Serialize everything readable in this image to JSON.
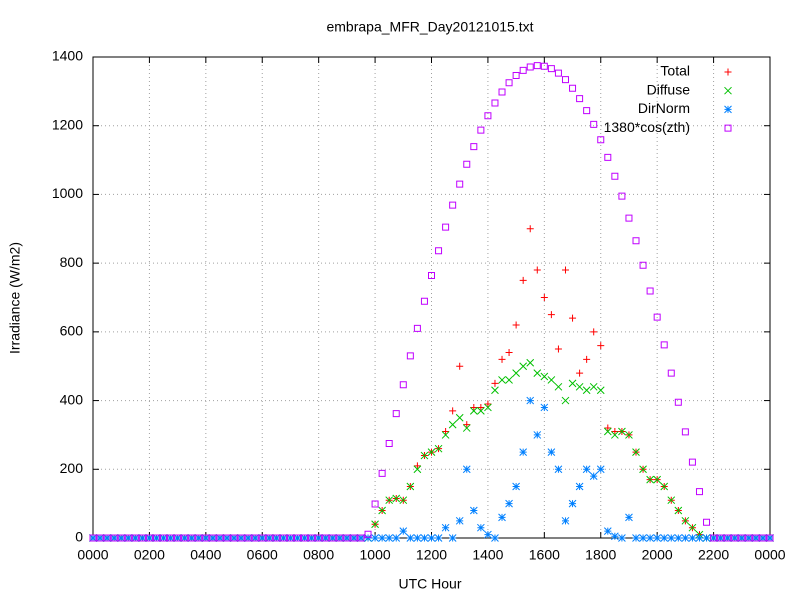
{
  "chart_data": {
    "type": "scatter",
    "title": "embrapa_MFR_Day20121015.txt",
    "xlabel": "UTC Hour",
    "ylabel": "Irradiance (W/m2)",
    "x": [
      0,
      0.25,
      0.5,
      0.75,
      1,
      1.25,
      1.5,
      1.75,
      2,
      2.25,
      2.5,
      2.75,
      3,
      3.25,
      3.5,
      3.75,
      4,
      4.25,
      4.5,
      4.75,
      5,
      5.25,
      5.5,
      5.75,
      6,
      6.25,
      6.5,
      6.75,
      7,
      7.25,
      7.5,
      7.75,
      8,
      8.25,
      8.5,
      8.75,
      9,
      9.25,
      9.5,
      9.75,
      10,
      10.25,
      10.5,
      10.75,
      11,
      11.25,
      11.5,
      11.75,
      12,
      12.25,
      12.5,
      12.75,
      13,
      13.25,
      13.5,
      13.75,
      14,
      14.25,
      14.5,
      14.75,
      15,
      15.25,
      15.5,
      15.75,
      16,
      16.25,
      16.5,
      16.75,
      17,
      17.25,
      17.5,
      17.75,
      18,
      18.25,
      18.5,
      18.75,
      19,
      19.25,
      19.5,
      19.75,
      20,
      20.25,
      20.5,
      20.75,
      21,
      21.25,
      21.5,
      21.75,
      22,
      22.25,
      22.5,
      22.75,
      23,
      23.25,
      23.5,
      23.75,
      24
    ],
    "series": [
      {
        "name": "Total",
        "color": "#ff0000",
        "marker": "plus",
        "values": [
          0,
          0,
          0,
          0,
          0,
          0,
          0,
          0,
          0,
          0,
          0,
          0,
          0,
          0,
          0,
          0,
          0,
          0,
          0,
          0,
          0,
          0,
          0,
          0,
          0,
          0,
          0,
          0,
          0,
          0,
          0,
          0,
          0,
          0,
          0,
          0,
          0,
          0,
          0,
          0,
          40,
          80,
          110,
          115,
          110,
          150,
          210,
          240,
          250,
          260,
          310,
          370,
          500,
          330,
          380,
          380,
          390,
          450,
          520,
          540,
          620,
          750,
          900,
          780,
          700,
          650,
          550,
          780,
          640,
          480,
          520,
          600,
          560,
          320,
          310,
          310,
          300,
          250,
          200,
          170,
          170,
          150,
          110,
          80,
          50,
          30,
          10,
          0,
          0,
          0,
          0,
          0,
          0,
          0,
          0,
          0,
          0
        ]
      },
      {
        "name": "Diffuse",
        "color": "#00c000",
        "marker": "cross",
        "values": [
          0,
          0,
          0,
          0,
          0,
          0,
          0,
          0,
          0,
          0,
          0,
          0,
          0,
          0,
          0,
          0,
          0,
          0,
          0,
          0,
          0,
          0,
          0,
          0,
          0,
          0,
          0,
          0,
          0,
          0,
          0,
          0,
          0,
          0,
          0,
          0,
          0,
          0,
          0,
          0,
          40,
          80,
          110,
          115,
          110,
          150,
          200,
          240,
          250,
          260,
          300,
          330,
          350,
          320,
          370,
          370,
          380,
          430,
          460,
          460,
          480,
          500,
          510,
          480,
          470,
          460,
          440,
          400,
          450,
          440,
          430,
          440,
          430,
          310,
          300,
          310,
          300,
          250,
          200,
          170,
          170,
          150,
          110,
          80,
          50,
          30,
          10,
          0,
          0,
          0,
          0,
          0,
          0,
          0,
          0,
          0,
          0
        ]
      },
      {
        "name": "DirNorm",
        "color": "#0080ff",
        "marker": "star",
        "values": [
          0,
          0,
          0,
          0,
          0,
          0,
          0,
          0,
          0,
          0,
          0,
          0,
          0,
          0,
          0,
          0,
          0,
          0,
          0,
          0,
          0,
          0,
          0,
          0,
          0,
          0,
          0,
          0,
          0,
          0,
          0,
          0,
          0,
          0,
          0,
          0,
          0,
          0,
          0,
          0,
          0,
          0,
          0,
          0,
          20,
          0,
          0,
          0,
          0,
          0,
          30,
          0,
          50,
          200,
          80,
          30,
          10,
          0,
          60,
          100,
          150,
          250,
          400,
          300,
          380,
          250,
          200,
          50,
          100,
          150,
          200,
          180,
          200,
          20,
          5,
          0,
          60,
          0,
          0,
          0,
          0,
          0,
          0,
          0,
          0,
          0,
          0,
          0,
          0,
          0,
          0,
          0,
          0,
          0,
          0,
          0,
          0
        ]
      },
      {
        "name": "1380*cos(zth)",
        "color": "#c000ff",
        "marker": "box",
        "values": [
          0,
          0,
          0,
          0,
          0,
          0,
          0,
          0,
          0,
          0,
          0,
          0,
          0,
          0,
          0,
          0,
          0,
          0,
          0,
          0,
          0,
          0,
          0,
          0,
          0,
          0,
          0,
          0,
          0,
          0,
          0,
          0,
          0,
          0,
          0,
          0,
          0,
          0,
          0,
          11,
          99,
          188,
          275,
          362,
          446,
          530,
          610,
          689,
          764,
          836,
          905,
          969,
          1030,
          1088,
          1139,
          1187,
          1229,
          1266,
          1298,
          1325,
          1346,
          1361,
          1371,
          1375,
          1373,
          1366,
          1353,
          1334,
          1309,
          1279,
          1244,
          1204,
          1159,
          1108,
          1053,
          995,
          931,
          865,
          794,
          719,
          643,
          562,
          480,
          395,
          309,
          221,
          135,
          46,
          0,
          0,
          0,
          0,
          0,
          0,
          0,
          0,
          0
        ]
      }
    ],
    "xlim": [
      0,
      24
    ],
    "xticks": [
      {
        "value": 0,
        "label": "0000"
      },
      {
        "value": 2,
        "label": "0200"
      },
      {
        "value": 4,
        "label": "0400"
      },
      {
        "value": 6,
        "label": "0600"
      },
      {
        "value": 8,
        "label": "0800"
      },
      {
        "value": 10,
        "label": "1000"
      },
      {
        "value": 12,
        "label": "1200"
      },
      {
        "value": 14,
        "label": "1400"
      },
      {
        "value": 16,
        "label": "1600"
      },
      {
        "value": 18,
        "label": "1800"
      },
      {
        "value": 20,
        "label": "2000"
      },
      {
        "value": 22,
        "label": "2200"
      },
      {
        "value": 24,
        "label": "0000"
      }
    ],
    "ylim": [
      0,
      1400
    ],
    "yticks": [
      0,
      200,
      400,
      600,
      800,
      1000,
      1200,
      1400
    ],
    "grid": true,
    "legend": "top-right"
  }
}
